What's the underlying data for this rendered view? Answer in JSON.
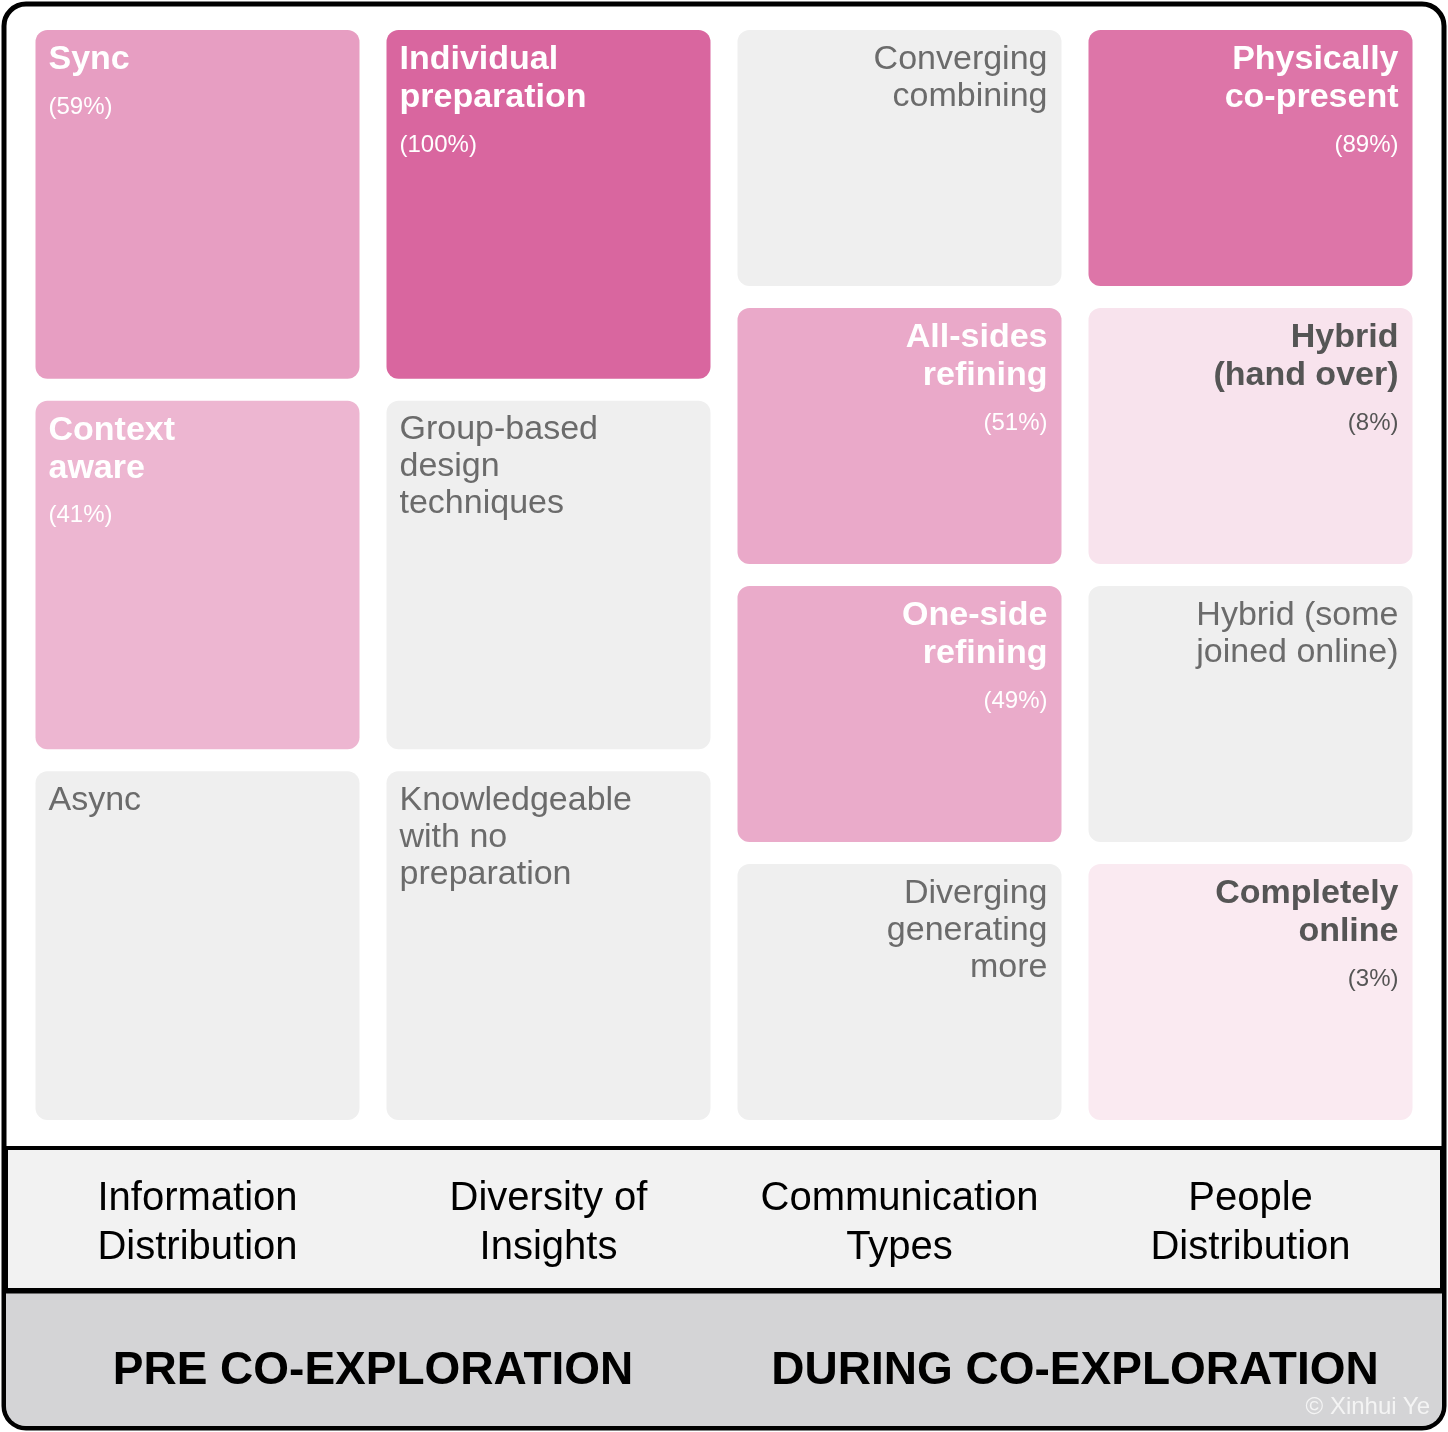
{
  "chart_data": {
    "type": "other",
    "categories": [
      "Sync",
      "Context\naware",
      "Async",
      "Individual\npreparation",
      "Group-based\ndesign\ntechniques",
      "Knowledgeable\nwith no\npreparation",
      "Converging\ncombining",
      "All-sides\nrefining",
      "One-side\nrefining",
      "Diverging\ngenerating\nmore",
      "Physically\nco-present",
      "Hybrid\n(hand over)",
      "Hybrid (some\njoined online)",
      "Completely\nonline"
    ],
    "values": [
      59,
      41,
      null,
      100,
      null,
      null,
      null,
      51,
      49,
      null,
      89,
      8,
      null,
      3
    ],
    "value_labels": [
      "(59%)",
      "(41%)",
      null,
      "(100%)",
      null,
      null,
      null,
      "(51%)",
      "(49%)",
      null,
      "(89%)",
      "(8%)",
      null,
      "(3%)"
    ],
    "annotations": [
      "Information\nDistribution",
      "Diversity of\nInsights",
      "Communication\nTypes",
      "People\nDistribution",
      "PRE CO-EXPLORATION",
      "DURING CO-EXPLORATION",
      "© Xinhui Ye"
    ]
  }
}
